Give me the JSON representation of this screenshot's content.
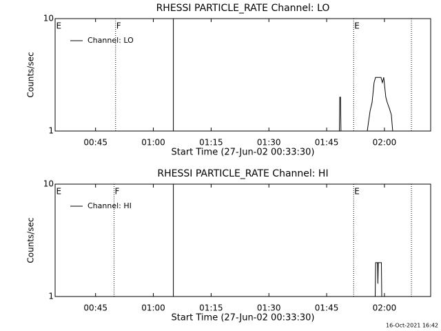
{
  "chart_data": [
    {
      "type": "line",
      "title": "RHESSI PARTICLE_RATE Channel: LO",
      "xlabel": "Start Time (27-Jun-02 00:33:30)",
      "ylabel": "Counts/sec",
      "xlim": [
        34.5,
        132
      ],
      "ylim": [
        1,
        10
      ],
      "y_scale": "log",
      "legend": "upper left",
      "xticks": [
        {
          "value": 45,
          "label": "00:45"
        },
        {
          "value": 60,
          "label": "01:00"
        },
        {
          "value": 75,
          "label": "01:15"
        },
        {
          "value": 90,
          "label": "01:30"
        },
        {
          "value": 105,
          "label": "01:45"
        },
        {
          "value": 120,
          "label": "02:00"
        }
      ],
      "yticks": [
        1,
        10
      ],
      "markers": [
        {
          "x": 34.6,
          "label": "E",
          "style": "none"
        },
        {
          "x": 50.2,
          "label": "F",
          "style": "dotted"
        },
        {
          "x": 65.2,
          "style": "solid"
        },
        {
          "x": 112,
          "label": "E",
          "style": "dotted"
        },
        {
          "x": 127,
          "style": "dotted"
        }
      ],
      "series": [
        {
          "name": "Channel: LO",
          "color": "#000000",
          "x": [
            108.3,
            108.4,
            108.6,
            108.7,
            null,
            115.54,
            116.25,
            116.79,
            117.32,
            117.68,
            119.11,
            119.46,
            119.82,
            120.36,
            120.71,
            121.25,
            121.79,
            122.14
          ],
          "values": [
            1,
            2,
            2,
            1,
            null,
            1,
            1.5,
            1.8,
            2.7,
            3,
            3,
            2.7,
            3,
            2,
            1.8,
            1.6,
            1.4,
            1
          ]
        }
      ]
    },
    {
      "type": "line",
      "title": "RHESSI PARTICLE_RATE Channel: HI",
      "xlabel": "Start Time (27-Jun-02 00:33:30)",
      "ylabel": "Counts/sec",
      "xlim": [
        34.5,
        132
      ],
      "ylim": [
        1,
        10
      ],
      "y_scale": "log",
      "legend": "upper left",
      "xticks": [
        {
          "value": 45,
          "label": "00:45"
        },
        {
          "value": 60,
          "label": "01:00"
        },
        {
          "value": 75,
          "label": "01:15"
        },
        {
          "value": 90,
          "label": "01:30"
        },
        {
          "value": 105,
          "label": "01:45"
        },
        {
          "value": 120,
          "label": "02:00"
        }
      ],
      "yticks": [
        1,
        10
      ],
      "markers": [
        {
          "x": 34.6,
          "label": "E",
          "style": "none"
        },
        {
          "x": 49.8,
          "label": "F",
          "style": "dotted"
        },
        {
          "x": 65.2,
          "style": "solid"
        },
        {
          "x": 112,
          "label": "E",
          "style": "dotted"
        },
        {
          "x": 127,
          "style": "dotted"
        }
      ],
      "series": [
        {
          "name": "Channel: HI",
          "color": "#000000",
          "x": [
            117.6,
            117.7,
            118.2,
            118.3,
            118.4,
            119.2,
            119.3
          ],
          "values": [
            1,
            2,
            2,
            1.3,
            2,
            2,
            1
          ]
        }
      ]
    }
  ],
  "timestamp": "16-Oct-2021 16:42"
}
